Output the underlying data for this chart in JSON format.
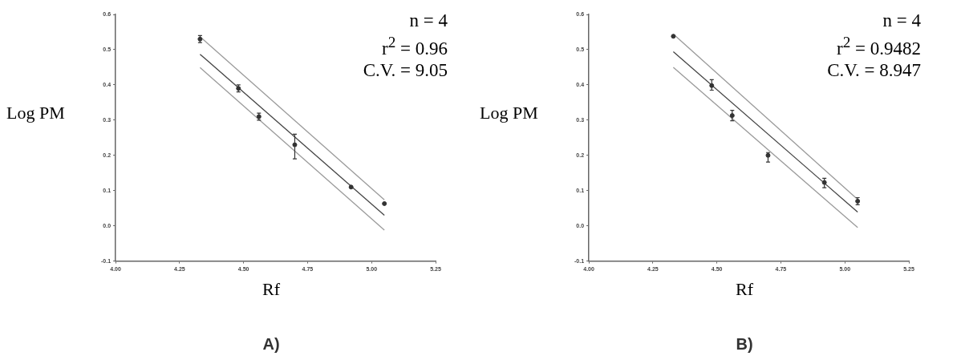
{
  "chart_data": [
    {
      "type": "scatter",
      "title": "A)",
      "xlabel": "Rf",
      "ylabel": "Log PM",
      "annotations": [
        "n = 4",
        "r$^{2}$ = 0.96",
        "C.V. = 9.05"
      ],
      "xlim": [
        4.0,
        5.25
      ],
      "xticks": [
        {
          "value": 4.0,
          "label": "4.00"
        },
        {
          "value": 4.25,
          "label": "4.25"
        },
        {
          "value": 4.5,
          "label": "4.50"
        },
        {
          "value": 4.75,
          "label": "4.75"
        },
        {
          "value": 5.0,
          "label": "5.00"
        },
        {
          "value": 5.25,
          "label": "5.25"
        }
      ],
      "ylim": [
        -0.1,
        0.6
      ],
      "yticks": [
        {
          "value": -0.1,
          "label": "-0.1"
        },
        {
          "value": 0,
          "label": "0.0"
        },
        {
          "value": 0.1,
          "label": "0.1"
        },
        {
          "value": 0.2,
          "label": "0.2"
        },
        {
          "value": 0.3,
          "label": "0.3"
        },
        {
          "value": 0.4,
          "label": "0.4"
        },
        {
          "value": 0.5,
          "label": "0.5"
        },
        {
          "value": 0.6,
          "label": "0.6"
        }
      ],
      "series": [
        {
          "type": "scatter",
          "marker": "circle",
          "color": "#333333",
          "x": [
            4.33,
            4.48,
            4.56,
            4.7,
            4.92,
            5.05
          ],
          "values": [
            0.53,
            0.39,
            0.31,
            0.23,
            0.11,
            0.063
          ],
          "errors": [
            [
              0.52,
              0.54
            ],
            [
              0.38,
              0.4
            ],
            [
              0.3,
              0.32
            ],
            [
              0.19,
              0.26
            ],
            null,
            null
          ]
        },
        {
          "type": "line",
          "color": "#444444",
          "x": [
            4.33,
            5.05
          ],
          "values": [
            0.487,
            0.03
          ]
        },
        {
          "type": "line",
          "color": "#9a9a9a",
          "x": [
            4.33,
            5.05
          ],
          "values": [
            0.537,
            0.074
          ]
        },
        {
          "type": "line",
          "color": "#9a9a9a",
          "x": [
            4.33,
            5.05
          ],
          "values": [
            0.449,
            -0.012
          ]
        }
      ]
    },
    {
      "type": "scatter",
      "title": "B)",
      "xlabel": "Rf",
      "ylabel": "Log PM",
      "annotations": [
        "n = 4",
        "r$^{2}$ = 0.9482",
        "C.V. = 8.947"
      ],
      "xlim": [
        4.0,
        5.25
      ],
      "xticks": [
        {
          "value": 4.0,
          "label": "4.00"
        },
        {
          "value": 4.25,
          "label": "4.25"
        },
        {
          "value": 4.5,
          "label": "4.50"
        },
        {
          "value": 4.75,
          "label": "4.75"
        },
        {
          "value": 5.0,
          "label": "5.00"
        },
        {
          "value": 5.25,
          "label": "5.25"
        }
      ],
      "ylim": [
        -0.1,
        0.6
      ],
      "yticks": [
        {
          "value": -0.1,
          "label": "-0.1"
        },
        {
          "value": 0,
          "label": "0.0"
        },
        {
          "value": 0.1,
          "label": "0.1"
        },
        {
          "value": 0.2,
          "label": "0.2"
        },
        {
          "value": 0.3,
          "label": "0.3"
        },
        {
          "value": 0.4,
          "label": "0.4"
        },
        {
          "value": 0.5,
          "label": "0.5"
        },
        {
          "value": 0.6,
          "label": "0.6"
        }
      ],
      "series": [
        {
          "type": "scatter",
          "marker": "circle",
          "color": "#333333",
          "x": [
            4.33,
            4.48,
            4.56,
            4.7,
            4.92,
            5.05
          ],
          "values": [
            0.538,
            0.398,
            0.313,
            0.2,
            0.123,
            0.07
          ],
          "errors": [
            null,
            [
              0.385,
              0.415
            ],
            [
              0.298,
              0.328
            ],
            [
              0.181,
              0.208
            ],
            [
              0.108,
              0.135
            ],
            [
              0.06,
              0.08
            ]
          ]
        },
        {
          "type": "line",
          "color": "#444444",
          "x": [
            4.33,
            5.05
          ],
          "values": [
            0.494,
            0.039
          ]
        },
        {
          "type": "line",
          "color": "#9a9a9a",
          "x": [
            4.33,
            5.05
          ],
          "values": [
            0.544,
            0.075
          ]
        },
        {
          "type": "line",
          "color": "#9a9a9a",
          "x": [
            4.33,
            5.05
          ],
          "values": [
            0.45,
            -0.005
          ]
        }
      ]
    }
  ]
}
